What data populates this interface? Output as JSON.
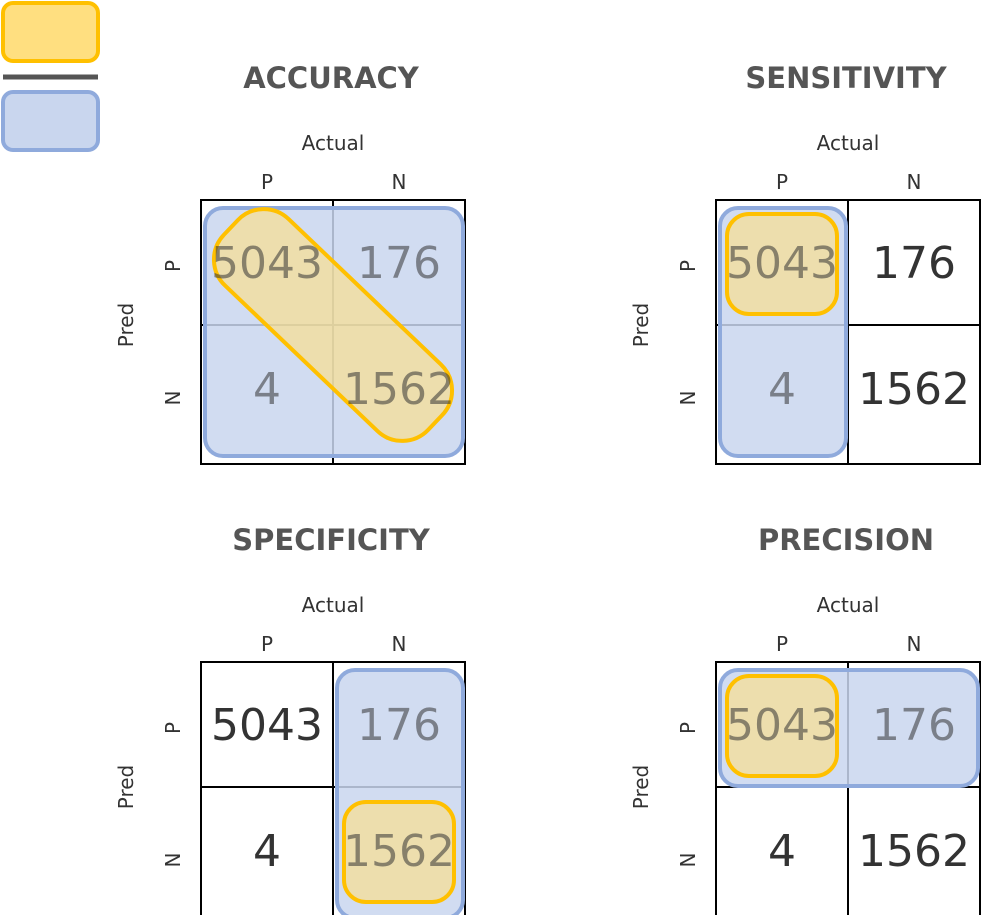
{
  "legend": {
    "numerator_color": "#ffc000",
    "numerator_fill": "#ffdf80",
    "denominator_color": "#8faadc",
    "denominator_fill": "#c9d6ee",
    "divider_color": "#555555"
  },
  "axis_labels": {
    "actual": "Actual",
    "pred": "Pred",
    "pos": "P",
    "neg": "N"
  },
  "matrix": {
    "tp": "5043",
    "fp": "176",
    "fn": "4",
    "tn": "1562"
  },
  "panels": [
    {
      "id": "accuracy",
      "title": "ACCURACY",
      "denominator": [
        "tp",
        "fp",
        "fn",
        "tn"
      ],
      "numerator": [
        "tp",
        "tn"
      ]
    },
    {
      "id": "sensitivity",
      "title": "SENSITIVITY",
      "denominator": [
        "tp",
        "fn"
      ],
      "numerator": [
        "tp"
      ]
    },
    {
      "id": "specificity",
      "title": "SPECIFICITY",
      "denominator": [
        "fp",
        "tn"
      ],
      "numerator": [
        "tn"
      ]
    },
    {
      "id": "precision",
      "title": "PRECISION",
      "denominator": [
        "tp",
        "fp"
      ],
      "numerator": [
        "tp"
      ]
    }
  ]
}
